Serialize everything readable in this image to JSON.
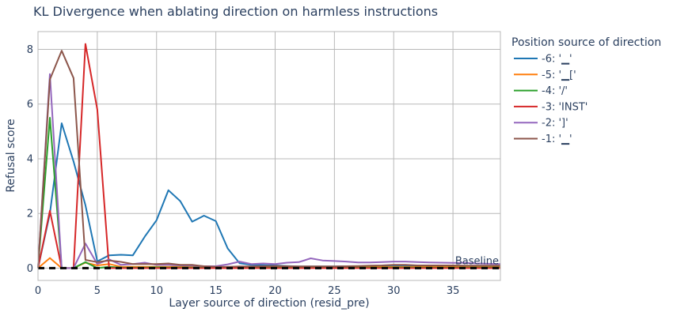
{
  "chart_data": {
    "type": "line",
    "title": "KL Divergence when ablating direction on harmless instructions",
    "xlabel": "Layer source of direction (resid_pre)",
    "ylabel": "Refusal score",
    "xlim": [
      0,
      39
    ],
    "ylim": [
      -0.45,
      8.65
    ],
    "xticks": [
      0,
      5,
      10,
      15,
      20,
      25,
      30,
      35
    ],
    "yticks": [
      0,
      2,
      4,
      6,
      8
    ],
    "grid": true,
    "legend": {
      "title": "Position source of direction",
      "placement": "right"
    },
    "baseline": {
      "value": 0,
      "label": "Baseline",
      "style": "dashed",
      "color": "#000000"
    },
    "x": [
      0,
      1,
      2,
      3,
      4,
      5,
      6,
      7,
      8,
      9,
      10,
      11,
      12,
      13,
      14,
      15,
      16,
      17,
      18,
      19,
      20,
      21,
      22,
      23,
      24,
      25,
      26,
      27,
      28,
      29,
      30,
      31,
      32,
      33,
      34,
      35,
      36,
      37,
      38,
      39
    ],
    "series": [
      {
        "name": "-6: '▁'",
        "color": "#1f77b4",
        "values": [
          0,
          2.0,
          5.3,
          3.9,
          2.3,
          0.25,
          0.47,
          0.49,
          0.47,
          1.15,
          1.75,
          2.85,
          2.45,
          1.7,
          1.92,
          1.72,
          0.72,
          0.18,
          0.12,
          0.11,
          0.1,
          0.08,
          0.06,
          0.06,
          0.06,
          0.06,
          0.07,
          0.07,
          0.06,
          0.05,
          0.07,
          0.07,
          0.06,
          0.05,
          0.05,
          0.04,
          0.05,
          0.05,
          0.05,
          0.05
        ]
      },
      {
        "name": "-5: '▁['",
        "color": "#ff7f0e",
        "values": [
          0,
          0.37,
          0,
          0,
          0.2,
          0.1,
          0.15,
          0.05,
          0.05,
          0.05,
          0.05,
          0.05,
          0.05,
          0.04,
          0.04,
          0.04,
          0.04,
          0.04,
          0.04,
          0.04,
          0.04,
          0.04,
          0.04,
          0.04,
          0.04,
          0.04,
          0.04,
          0.04,
          0.04,
          0.04,
          0.04,
          0.04,
          0.04,
          0.04,
          0.04,
          0.04,
          0.04,
          0.04,
          0.04,
          0.04
        ]
      },
      {
        "name": "-4: '/'",
        "color": "#2ca02c",
        "values": [
          0,
          5.5,
          0,
          0,
          0.22,
          0,
          0.05,
          0.02,
          0.02,
          0.02,
          0.03,
          0.02,
          0.02,
          0.02,
          0.02,
          0.02,
          0.02,
          0.02,
          0.02,
          0.02,
          0.02,
          0.02,
          0.02,
          0.02,
          0.02,
          0.02,
          0.02,
          0.02,
          0.02,
          0.02,
          0.02,
          0.02,
          0.02,
          0.02,
          0.02,
          0.02,
          0.02,
          0.02,
          0.02,
          0.02
        ]
      },
      {
        "name": "-3: 'INST'",
        "color": "#d62728",
        "values": [
          0,
          2.1,
          0,
          0,
          8.2,
          5.8,
          0,
          0,
          0,
          0,
          0,
          0,
          0,
          0,
          0,
          0,
          0,
          0,
          0,
          0,
          0,
          0,
          0,
          0,
          0,
          0,
          0,
          0,
          0,
          0,
          0,
          0,
          0,
          0,
          0,
          0,
          0,
          0,
          0,
          0
        ]
      },
      {
        "name": "-2: ']'",
        "color": "#9467bd",
        "values": [
          0,
          7.1,
          0,
          0,
          0.9,
          0.15,
          0.32,
          0.12,
          0.15,
          0.2,
          0.12,
          0.12,
          0.1,
          0.09,
          0.07,
          0.07,
          0.14,
          0.24,
          0.15,
          0.17,
          0.15,
          0.2,
          0.22,
          0.36,
          0.28,
          0.26,
          0.24,
          0.21,
          0.21,
          0.22,
          0.24,
          0.24,
          0.22,
          0.21,
          0.2,
          0.19,
          0.19,
          0.17,
          0.16,
          0.15
        ]
      },
      {
        "name": "-1: '▁'",
        "color": "#8c564b",
        "values": [
          0,
          6.9,
          7.95,
          6.95,
          0.3,
          0.22,
          0.28,
          0.23,
          0.15,
          0.15,
          0.15,
          0.17,
          0.12,
          0.12,
          0.07,
          0.05,
          0.05,
          0.06,
          0.06,
          0.07,
          0.08,
          0.07,
          0.06,
          0.06,
          0.06,
          0.06,
          0.07,
          0.08,
          0.09,
          0.1,
          0.12,
          0.12,
          0.1,
          0.1,
          0.1,
          0.1,
          0.09,
          0.09,
          0.09,
          0.09
        ]
      }
    ]
  }
}
